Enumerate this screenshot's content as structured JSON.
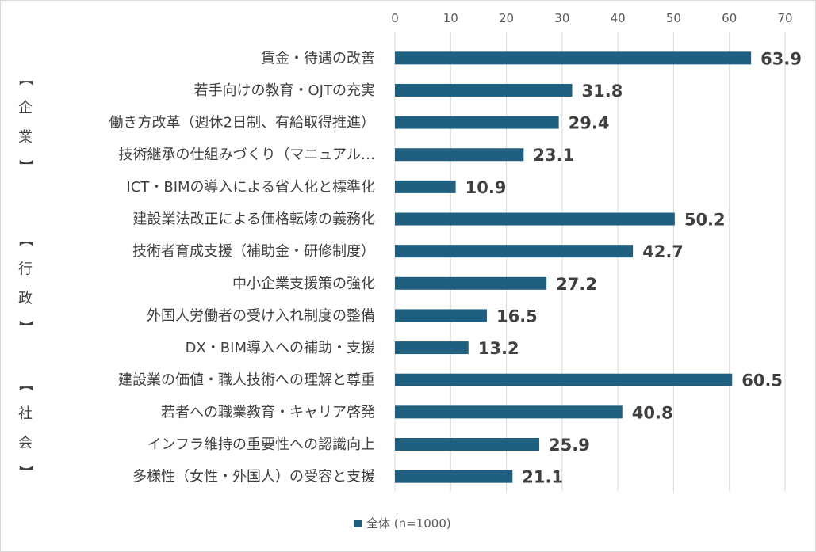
{
  "chart_data": {
    "type": "bar",
    "orientation": "horizontal",
    "title": "",
    "xlabel": "",
    "ylabel": "",
    "xlim": [
      0,
      70
    ],
    "ticks": [
      0,
      10,
      20,
      30,
      40,
      50,
      60,
      70
    ],
    "grid": true,
    "legend_position": "bottom",
    "series_color": "#1f5f7f",
    "series": [
      {
        "name": "全体 (n=1000)",
        "values": [
          63.9,
          31.8,
          29.4,
          23.1,
          10.9,
          50.2,
          42.7,
          27.2,
          16.5,
          13.2,
          60.5,
          40.8,
          25.9,
          21.1
        ]
      }
    ],
    "value_labels": [
      "63.9",
      "31.8",
      "29.4",
      "23.1",
      "10.9",
      "50.2",
      "42.7",
      "27.2",
      "16.5",
      "13.2",
      "60.5",
      "40.8",
      "25.9",
      "21.1"
    ],
    "categories": [
      "賃金・待遇の改善",
      "若手向けの教育・OJTの充実",
      "働き方改革（週休2日制、有給取得推進）",
      "技術継承の仕組みづくり（マニュアル…",
      "ICT・BIMの導入による省人化と標準化",
      "建設業法改正による価格転嫁の義務化",
      "技術者育成支援（補助金・研修制度）",
      "中小企業支援策の強化",
      "外国人労働者の受け入れ制度の整備",
      "DX・BIM導入への補助・支援",
      "建設業の価値・職人技術への理解と尊重",
      "若者への職業教育・キャリア啓発",
      "インフラ維持の重要性への認識向上",
      "多様性（女性・外国人）の受容と支援"
    ],
    "groups": [
      {
        "chars": [
          "【",
          "企",
          "業",
          "】"
        ],
        "start": 0,
        "end": 4
      },
      {
        "chars": [
          "【",
          "行",
          "政",
          "】"
        ],
        "start": 5,
        "end": 9
      },
      {
        "chars": [
          "【",
          "社",
          "会",
          "】"
        ],
        "start": 10,
        "end": 13
      }
    ]
  }
}
